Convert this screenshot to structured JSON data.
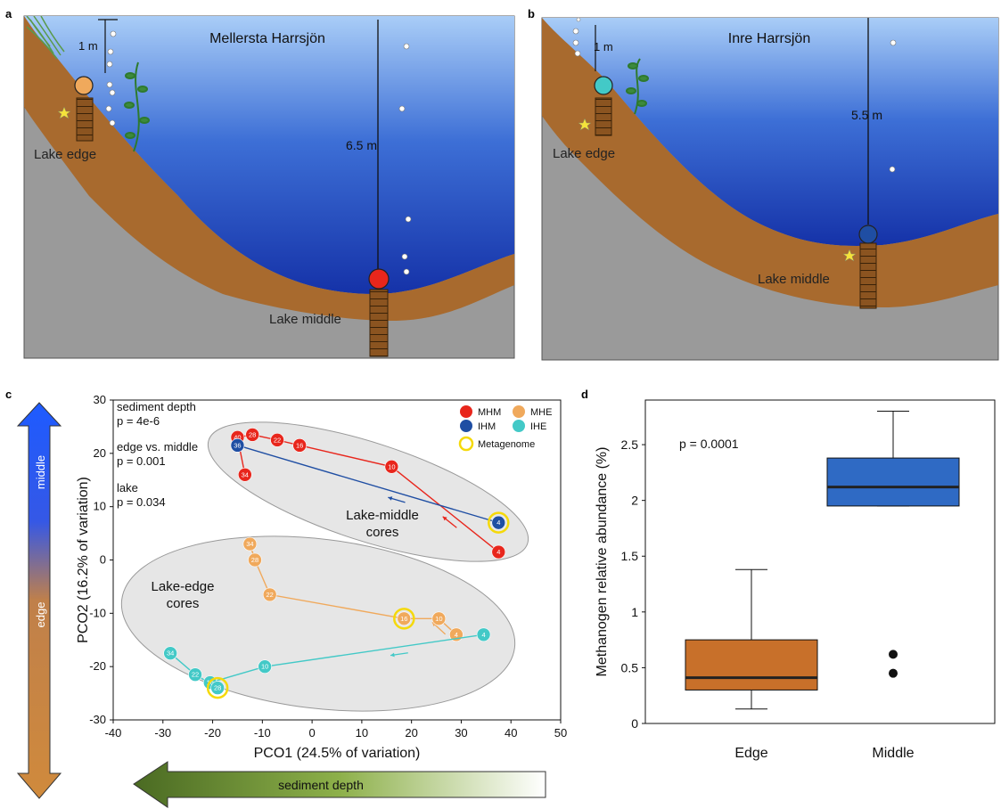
{
  "panels": {
    "a": {
      "letter": "a",
      "lake_name": "Mellersta Harrsjön",
      "edge_depth": "1 m",
      "middle_depth": "6.5 m",
      "edge_label": "Lake edge",
      "middle_label": "Lake middle"
    },
    "b": {
      "letter": "b",
      "lake_name": "Inre Harrsjön",
      "edge_depth": "1 m",
      "middle_depth": "5.5 m",
      "edge_label": "Lake edge",
      "middle_label": "Lake middle"
    },
    "c": {
      "letter": "c",
      "stats": {
        "depth_label": "sediment depth",
        "depth_p": "p = 4e-6",
        "edge_label": "edge vs. middle",
        "edge_p": "p = 0.001",
        "lake_label": "lake",
        "lake_p": "p = 0.034"
      },
      "ellipse_middle_label": [
        "Lake-middle",
        "cores"
      ],
      "ellipse_edge_label": [
        "Lake-edge",
        "cores"
      ],
      "vertical_arrow": {
        "top": "middle",
        "bottom": "edge"
      },
      "depth_arrow": "sediment depth"
    },
    "d": {
      "letter": "d",
      "p_value": "p = 0.0001"
    }
  },
  "colors": {
    "MHM": "#e8261c",
    "IHM": "#1f4ea3",
    "MHE": "#f0a95c",
    "IHE": "#43c9c7",
    "metagenome": "#f5d90a",
    "edge_box": "#c8702a",
    "middle_box": "#2f6ac4",
    "water_top": "#a9cdf7",
    "water_bottom": "#1c3fb0",
    "sediment": "#a86a2e",
    "ground": "#9a9a9a"
  },
  "chart_data": [
    {
      "type": "scatter",
      "panel": "c",
      "xlabel": "PCO1 (24.5% of variation)",
      "ylabel": "PCO2 (16.2% of variation)",
      "xlim": [
        -40,
        50
      ],
      "ylim": [
        -30,
        30
      ],
      "xticks": [
        -40,
        -30,
        -20,
        -10,
        0,
        10,
        20,
        30,
        40,
        50
      ],
      "yticks": [
        -30,
        -20,
        -10,
        0,
        10,
        20,
        30
      ],
      "legend_placement": "top-right",
      "legend": [
        {
          "key": "MHM",
          "label": "MHM"
        },
        {
          "key": "MHE",
          "label": "MHE"
        },
        {
          "key": "IHM",
          "label": "IHM"
        },
        {
          "key": "IHE",
          "label": "IHE"
        },
        {
          "key": "metagenome",
          "label": "Metagenome"
        }
      ],
      "series": [
        {
          "name": "MHM",
          "points": [
            {
              "x": 37.5,
              "y": 1.5,
              "label": "4"
            },
            {
              "x": 16,
              "y": 17.5,
              "label": "10"
            },
            {
              "x": -2.5,
              "y": 21.5,
              "label": "16"
            },
            {
              "x": -7,
              "y": 22.5,
              "label": "22"
            },
            {
              "x": -12,
              "y": 23.5,
              "label": "28"
            },
            {
              "x": -15,
              "y": 23,
              "label": "40"
            },
            {
              "x": -13.5,
              "y": 16,
              "label": "34"
            }
          ],
          "metagenome": []
        },
        {
          "name": "IHM",
          "points": [
            {
              "x": 37.5,
              "y": 7,
              "label": "4"
            },
            {
              "x": -15,
              "y": 21.5,
              "label": "36"
            }
          ],
          "metagenome": [
            "4"
          ]
        },
        {
          "name": "MHE",
          "points": [
            {
              "x": 29,
              "y": -14,
              "label": "4"
            },
            {
              "x": 25.5,
              "y": -11,
              "label": "10"
            },
            {
              "x": 18.5,
              "y": -11,
              "label": "16"
            },
            {
              "x": -8.5,
              "y": -6.5,
              "label": "22"
            },
            {
              "x": -11.5,
              "y": 0,
              "label": "28"
            },
            {
              "x": -12.5,
              "y": 3,
              "label": "34"
            }
          ],
          "metagenome": [
            "16"
          ]
        },
        {
          "name": "IHE",
          "points": [
            {
              "x": 34.5,
              "y": -14,
              "label": "4"
            },
            {
              "x": -9.5,
              "y": -20,
              "label": "10"
            },
            {
              "x": -20.5,
              "y": -23,
              "label": "16"
            },
            {
              "x": -19,
              "y": -24,
              "label": "28"
            },
            {
              "x": -23.5,
              "y": -21.5,
              "label": "22"
            },
            {
              "x": -28.5,
              "y": -17.5,
              "label": "34"
            }
          ],
          "metagenome": [
            "28"
          ]
        }
      ]
    },
    {
      "type": "box",
      "panel": "d",
      "ylabel": "Methanogen relative abundance (%)",
      "ylim": [
        0,
        2.9
      ],
      "yticks": [
        0,
        0.5,
        1,
        1.5,
        2,
        2.5
      ],
      "categories": [
        "Edge",
        "Middle"
      ],
      "boxes": [
        {
          "name": "Edge",
          "min": 0.13,
          "q1": 0.3,
          "median": 0.41,
          "q3": 0.75,
          "max": 1.38,
          "outliers": []
        },
        {
          "name": "Middle",
          "min": 1.95,
          "q1": 1.95,
          "median": 2.12,
          "q3": 2.38,
          "max": 2.8,
          "outliers": [
            0.45,
            0.62
          ]
        }
      ]
    }
  ]
}
